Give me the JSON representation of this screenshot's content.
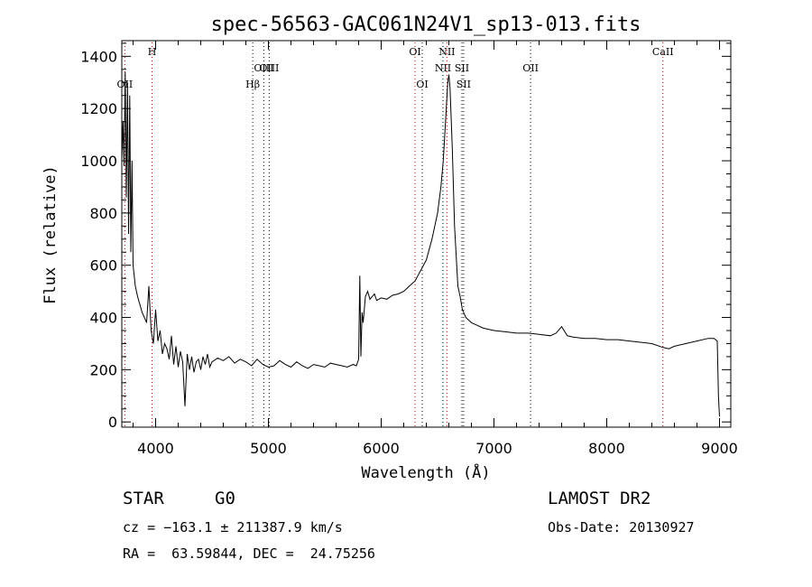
{
  "chart_data": {
    "type": "line",
    "title": "spec-56563-GAC061N24V1_sp13-013.fits",
    "xlabel": "Wavelength (Å)",
    "ylabel": "Flux (relative)",
    "xlim": [
      3700,
      9100
    ],
    "ylim": [
      -20,
      1460
    ],
    "xticks": [
      4000,
      5000,
      6000,
      7000,
      8000,
      9000
    ],
    "yticks": [
      0,
      200,
      400,
      600,
      800,
      1000,
      1200,
      1400
    ],
    "x_minor_step": 200,
    "y_minor_step": 50,
    "emission_lines": [
      {
        "label": "OII",
        "wavelength": 3727,
        "row": 2,
        "color": "#d00000"
      },
      {
        "label": "H",
        "wavelength": 3968,
        "row": 0,
        "color": "#d00000"
      },
      {
        "label": "Hβ",
        "wavelength": 4861,
        "row": 2,
        "color": "#000000"
      },
      {
        "label": "OIII",
        "wavelength": 4959,
        "row": 1,
        "color": "#000000"
      },
      {
        "label": "OIII",
        "wavelength": 5007,
        "row": 1,
        "color": "#000000"
      },
      {
        "label": "OI",
        "wavelength": 6300,
        "row": 0,
        "color": "#d00000"
      },
      {
        "label": "OI",
        "wavelength": 6364,
        "row": 2,
        "color": "#000000"
      },
      {
        "label": "NII",
        "wavelength": 6548,
        "row": 1,
        "color": "#000000"
      },
      {
        "label": "NII",
        "wavelength": 6583,
        "row": 0,
        "color": "#d00000"
      },
      {
        "label": "SII",
        "wavelength": 6716,
        "row": 1,
        "color": "#000000"
      },
      {
        "label": "SII",
        "wavelength": 6731,
        "row": 2,
        "color": "#000000"
      },
      {
        "label": "OII",
        "wavelength": 7325,
        "row": 1,
        "color": "#000000"
      },
      {
        "label": "CaII",
        "wavelength": 8498,
        "row": 0,
        "color": "#d00000"
      }
    ],
    "series": [
      {
        "x": [
          3700,
          3710,
          3720,
          3730,
          3740,
          3750,
          3760,
          3770,
          3780,
          3790,
          3800,
          3820,
          3840,
          3860,
          3880,
          3900,
          3920,
          3940,
          3960,
          3980,
          4000,
          4020,
          4040,
          4060,
          4080,
          4100,
          4120,
          4140,
          4160,
          4180,
          4200,
          4220,
          4240,
          4260,
          4280,
          4300,
          4320,
          4340,
          4360,
          4380,
          4400,
          4420,
          4440,
          4460,
          4480,
          4500,
          4550,
          4600,
          4650,
          4700,
          4750,
          4800,
          4850,
          4900,
          4950,
          5000,
          5050,
          5100,
          5150,
          5200,
          5250,
          5300,
          5350,
          5400,
          5450,
          5500,
          5550,
          5600,
          5650,
          5700,
          5750,
          5780,
          5800,
          5810,
          5820,
          5830,
          5840,
          5860,
          5880,
          5900,
          5920,
          5940,
          5960,
          5980,
          6000,
          6050,
          6100,
          6150,
          6200,
          6250,
          6300,
          6350,
          6400,
          6450,
          6500,
          6530,
          6550,
          6570,
          6590,
          6600,
          6610,
          6630,
          6650,
          6680,
          6700,
          6720,
          6750,
          6800,
          6850,
          6900,
          6950,
          7000,
          7100,
          7200,
          7300,
          7400,
          7500,
          7550,
          7600,
          7650,
          7700,
          7800,
          7900,
          8000,
          8100,
          8200,
          8300,
          8400,
          8500,
          8550,
          8600,
          8700,
          8800,
          8900,
          8950,
          8980,
          8990,
          9000
        ],
        "y": [
          1000,
          1150,
          980,
          1340,
          860,
          1300,
          720,
          1250,
          650,
          1000,
          600,
          520,
          480,
          450,
          420,
          400,
          380,
          520,
          350,
          300,
          430,
          310,
          350,
          260,
          300,
          280,
          240,
          330,
          220,
          290,
          210,
          270,
          230,
          60,
          260,
          200,
          250,
          190,
          230,
          240,
          200,
          250,
          220,
          260,
          210,
          230,
          245,
          235,
          250,
          225,
          240,
          230,
          215,
          240,
          220,
          210,
          215,
          235,
          220,
          210,
          230,
          215,
          205,
          220,
          215,
          210,
          225,
          220,
          215,
          210,
          220,
          215,
          240,
          560,
          250,
          420,
          380,
          480,
          500,
          470,
          480,
          490,
          465,
          470,
          475,
          470,
          485,
          490,
          500,
          520,
          540,
          580,
          620,
          700,
          800,
          900,
          1000,
          1150,
          1300,
          1330,
          1280,
          1050,
          750,
          520,
          480,
          430,
          400,
          380,
          370,
          360,
          355,
          350,
          345,
          340,
          340,
          335,
          330,
          340,
          365,
          330,
          325,
          320,
          320,
          315,
          315,
          310,
          305,
          300,
          285,
          280,
          290,
          300,
          310,
          320,
          320,
          310,
          100,
          20
        ]
      }
    ],
    "footer": {
      "object_type": "STAR",
      "subclass": "G0",
      "survey": "LAMOST DR2",
      "cz": "cz = −163.1 ± 211387.9 km/s",
      "obs_date": "Obs-Date: 20130927",
      "coords": "RA =  63.59844, DEC =  24.75256"
    }
  }
}
